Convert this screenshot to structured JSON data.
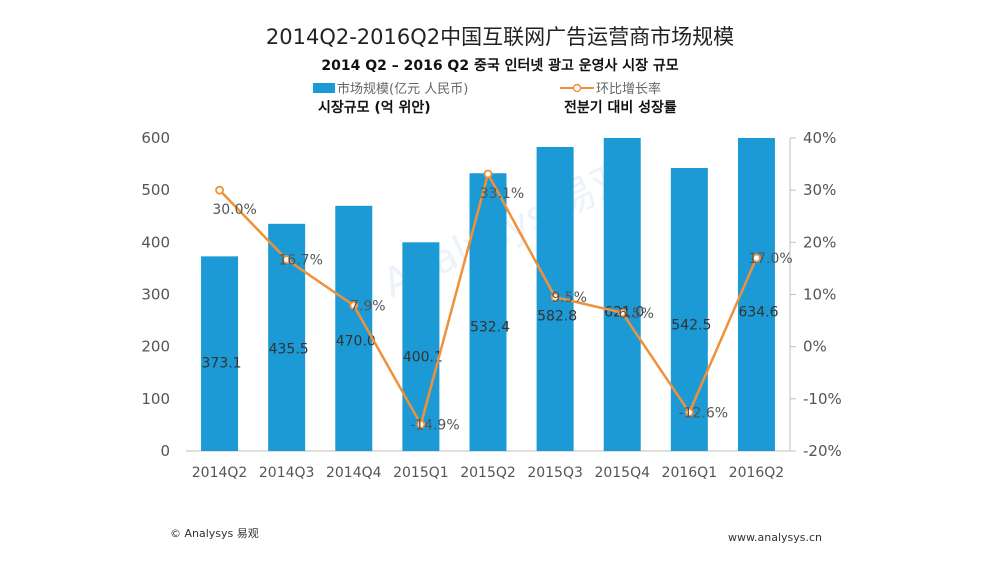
{
  "title_cn": "2014Q2-2016Q2中国互联网广告运营商市场规模",
  "title_ko": "2014 Q2 – 2016 Q2 중국 인터넷 광고 운영사 시장 규모",
  "legend": {
    "bar_label": "市场规模(亿元 人民币)",
    "line_label": "环比增长率",
    "bar_label_ko": "시장규모 (억 위안)",
    "line_label_ko": "전분기 대비 성장률"
  },
  "footer": {
    "left": "© Analysys 易观",
    "right": "www.analysys.cn"
  },
  "colors": {
    "bar": "#1b9ad6",
    "line": "#f0913a",
    "axis": "#bfbfbf"
  },
  "chart_data": {
    "type": "bar",
    "categories": [
      "2014Q2",
      "2014Q3",
      "2014Q4",
      "2015Q1",
      "2015Q2",
      "2015Q3",
      "2015Q4",
      "2016Q1",
      "2016Q2"
    ],
    "series": [
      {
        "name": "市场规模(亿元 人民币)",
        "type": "bar",
        "values": [
          373.1,
          435.5,
          470.0,
          400.1,
          532.4,
          582.8,
          621.0,
          542.5,
          634.6
        ],
        "labels": [
          "373.1",
          "435.5",
          "470.0",
          "400.1",
          "532.4",
          "582.8",
          "621.0",
          "542.5",
          "634.6"
        ]
      },
      {
        "name": "环比增长率",
        "type": "line",
        "axis": "right",
        "values": [
          30.0,
          16.7,
          7.9,
          -14.9,
          33.1,
          9.5,
          6.5,
          -12.6,
          17.0
        ],
        "labels": [
          "30.0%",
          "16.7%",
          "7.9%",
          "-14.9%",
          "33.1%",
          "9.5%",
          "6.5%",
          "-12.6%",
          "17.0%"
        ]
      }
    ],
    "ylim_left": [
      0,
      600
    ],
    "yticks_left": [
      "0",
      "100",
      "200",
      "300",
      "400",
      "500",
      "600"
    ],
    "ylim_right": [
      -20,
      40
    ],
    "yticks_right": [
      "-20%",
      "-10%",
      "0%",
      "10%",
      "20%",
      "30%",
      "40%"
    ],
    "grid": false
  }
}
